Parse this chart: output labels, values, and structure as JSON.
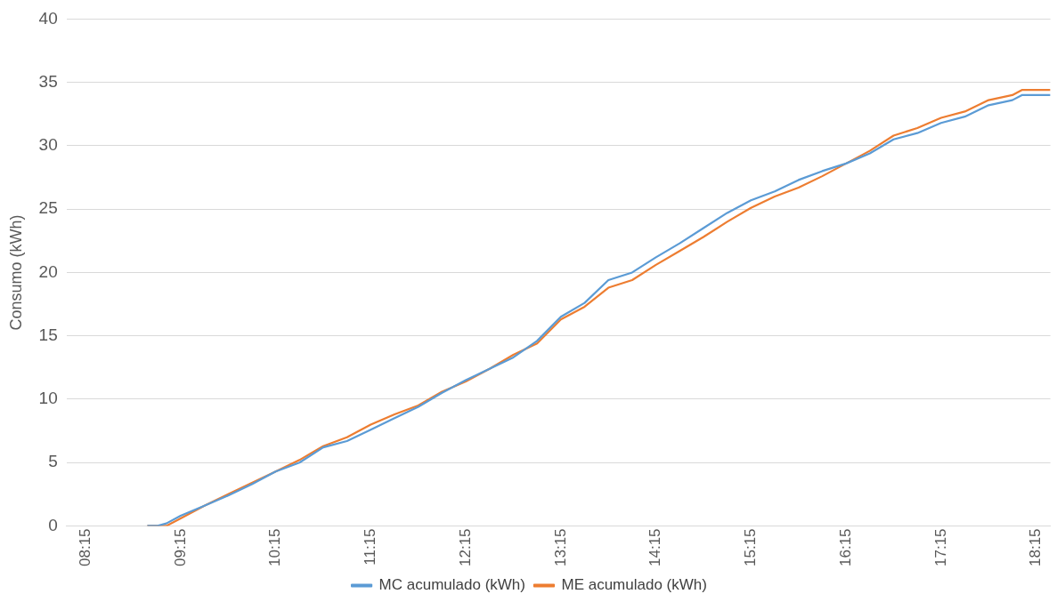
{
  "chart_data": {
    "type": "line",
    "ylabel": "Consumo (kWh)",
    "xlim": [
      8.05,
      18.4
    ],
    "ylim": [
      0,
      40
    ],
    "yticks": [
      0,
      5,
      10,
      15,
      20,
      25,
      30,
      35,
      40
    ],
    "xticks": [
      {
        "value": 8.25,
        "label": "08:15"
      },
      {
        "value": 9.25,
        "label": "09:15"
      },
      {
        "value": 10.25,
        "label": "10:15"
      },
      {
        "value": 11.25,
        "label": "11:15"
      },
      {
        "value": 12.25,
        "label": "12:15"
      },
      {
        "value": 13.25,
        "label": "13:15"
      },
      {
        "value": 14.25,
        "label": "14:15"
      },
      {
        "value": 15.25,
        "label": "15:15"
      },
      {
        "value": 16.25,
        "label": "16:15"
      },
      {
        "value": 17.25,
        "label": "17:15"
      },
      {
        "value": 18.25,
        "label": "18:15"
      }
    ],
    "x": [
      8.9,
      9.0,
      9.1,
      9.25,
      9.5,
      9.75,
      10.0,
      10.25,
      10.5,
      10.75,
      11.0,
      11.25,
      11.5,
      11.75,
      12.0,
      12.25,
      12.5,
      12.75,
      13.0,
      13.25,
      13.5,
      13.75,
      14.0,
      14.25,
      14.5,
      14.75,
      15.0,
      15.25,
      15.5,
      15.75,
      16.0,
      16.25,
      16.5,
      16.75,
      17.0,
      17.25,
      17.5,
      17.75,
      18.0,
      18.1,
      18.4
    ],
    "series": [
      {
        "name": "MC acumulado (kWh)",
        "color": "#5b9bd5",
        "values": [
          0,
          0,
          0.2,
          0.8,
          1.6,
          2.4,
          3.3,
          4.3,
          5.0,
          6.2,
          6.7,
          7.6,
          8.5,
          9.4,
          10.5,
          11.5,
          12.4,
          13.3,
          14.6,
          16.5,
          17.6,
          19.4,
          20.0,
          21.2,
          22.3,
          23.5,
          24.7,
          25.7,
          26.4,
          27.3,
          28.0,
          28.6,
          29.4,
          30.5,
          31.0,
          31.8,
          32.3,
          33.2,
          33.6,
          34.0,
          34.0
        ]
      },
      {
        "name": "ME acumulado (kWh)",
        "color": "#ed7d31",
        "values": [
          0,
          0,
          0,
          0.6,
          1.6,
          2.5,
          3.4,
          4.3,
          5.2,
          6.3,
          7.0,
          8.0,
          8.8,
          9.5,
          10.6,
          11.4,
          12.4,
          13.5,
          14.4,
          16.3,
          17.3,
          18.8,
          19.4,
          20.6,
          21.7,
          22.8,
          24.0,
          25.1,
          26.0,
          26.7,
          27.6,
          28.6,
          29.6,
          30.8,
          31.4,
          32.2,
          32.7,
          33.6,
          34.0,
          34.4,
          34.4
        ]
      }
    ],
    "grid": "y",
    "legend": "bottom",
    "marker": "none",
    "line_style": "solid"
  }
}
